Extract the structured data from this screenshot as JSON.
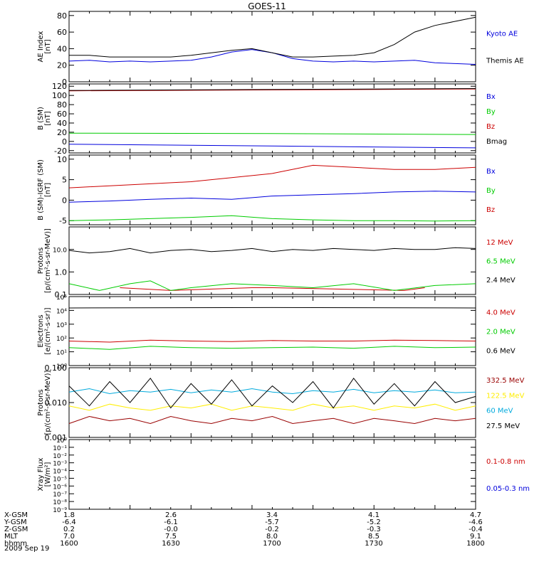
{
  "title": "GOES-11",
  "date_label": "2009 Sep 19",
  "ephemeris": {
    "rows": [
      {
        "label": "X-GSM",
        "values": [
          "1.8",
          "2.6",
          "3.4",
          "4.1",
          "4.7"
        ]
      },
      {
        "label": "Y-GSM",
        "values": [
          "-6.4",
          "-6.1",
          "-5.7",
          "-5.2",
          "-4.6"
        ]
      },
      {
        "label": "Z-GSM",
        "values": [
          "0.2",
          "-0.0",
          "-0.2",
          "-0.3",
          "-0.4"
        ]
      },
      {
        "label": "MLT",
        "values": [
          "7.0",
          "7.5",
          "8.0",
          "8.5",
          "9.1"
        ]
      },
      {
        "label": "hhmm",
        "values": [
          "1600",
          "1630",
          "1700",
          "1730",
          "1800"
        ]
      }
    ]
  },
  "colors": {
    "black": "#000000",
    "blue": "#0000dd",
    "red": "#cc0000",
    "green": "#00cc00",
    "yellow": "#ffee00",
    "cyan": "#00aadd",
    "darkred": "#990000"
  },
  "chart_data": [
    {
      "type": "line",
      "ylabel": "AE Index\n[nT]",
      "ylim": [
        0,
        85
      ],
      "yticks": [
        0,
        20,
        40,
        60,
        80
      ],
      "log": false,
      "xlim": [
        1600,
        1800
      ],
      "series": [
        {
          "name": "Kyoto AE",
          "color": "#0000dd",
          "x": [
            1600,
            1610,
            1620,
            1630,
            1640,
            1650,
            1660,
            1670,
            1680,
            1690,
            1700,
            1710,
            1720,
            1730,
            1740,
            1750,
            1760,
            1770,
            1780,
            1790,
            1800
          ],
          "y": [
            25,
            26,
            24,
            25,
            24,
            25,
            26,
            30,
            36,
            39,
            35,
            28,
            25,
            24,
            25,
            24,
            25,
            26,
            23,
            22,
            21
          ]
        },
        {
          "name": "Themis AE",
          "color": "#000000",
          "x": [
            1600,
            1610,
            1620,
            1630,
            1640,
            1650,
            1660,
            1670,
            1680,
            1690,
            1700,
            1710,
            1720,
            1730,
            1740,
            1750,
            1760,
            1770,
            1780,
            1790,
            1800
          ],
          "y": [
            32,
            32,
            30,
            30,
            30,
            30,
            32,
            35,
            38,
            40,
            35,
            30,
            30,
            31,
            32,
            35,
            45,
            60,
            68,
            73,
            78
          ]
        }
      ]
    },
    {
      "type": "line",
      "ylabel": "B (SM)\n[nT]",
      "ylim": [
        -25,
        125
      ],
      "yticks": [
        -20,
        0,
        20,
        40,
        60,
        80,
        100,
        120
      ],
      "log": false,
      "xlim": [
        1600,
        1800
      ],
      "series": [
        {
          "name": "Bx",
          "color": "#0000dd",
          "x": [
            1600,
            1700,
            1800
          ],
          "y": [
            -6,
            -10,
            -14
          ]
        },
        {
          "name": "By",
          "color": "#00cc00",
          "x": [
            1600,
            1700,
            1800
          ],
          "y": [
            18,
            17,
            15
          ]
        },
        {
          "name": "Bz",
          "color": "#cc0000",
          "x": [
            1600,
            1700,
            1800
          ],
          "y": [
            110,
            112,
            114
          ]
        },
        {
          "name": "Bmag",
          "color": "#000000",
          "x": [
            1600,
            1700,
            1800
          ],
          "y": [
            111,
            113,
            115
          ]
        }
      ]
    },
    {
      "type": "line",
      "ylabel": "B (SM)-IGRF (SM)\n[nT]",
      "ylim": [
        -6,
        11
      ],
      "yticks": [
        -5,
        0,
        5,
        10
      ],
      "log": false,
      "xlim": [
        1600,
        1800
      ],
      "series": [
        {
          "name": "Bx",
          "color": "#0000dd",
          "x": [
            1600,
            1620,
            1640,
            1660,
            1680,
            1700,
            1720,
            1740,
            1760,
            1780,
            1800
          ],
          "y": [
            -0.5,
            -0.2,
            0.2,
            0.5,
            0.2,
            1,
            1.3,
            1.6,
            2,
            2.2,
            2
          ]
        },
        {
          "name": "By",
          "color": "#00cc00",
          "x": [
            1600,
            1620,
            1640,
            1660,
            1680,
            1700,
            1720,
            1740,
            1760,
            1780,
            1800
          ],
          "y": [
            -5,
            -4.8,
            -4.5,
            -4.2,
            -3.8,
            -4.5,
            -4.8,
            -5,
            -5,
            -5.1,
            -5
          ]
        },
        {
          "name": "Bz",
          "color": "#cc0000",
          "x": [
            1600,
            1620,
            1640,
            1660,
            1680,
            1700,
            1720,
            1740,
            1760,
            1780,
            1800
          ],
          "y": [
            3,
            3.5,
            4,
            4.5,
            5.5,
            6.5,
            8.5,
            8,
            7.5,
            7.5,
            8
          ]
        }
      ]
    },
    {
      "type": "line",
      "ylabel": "Protons\n[p/(cm²-s-sr-MeV)]",
      "ylim": [
        0.1,
        100
      ],
      "yticks": [
        0.1,
        1,
        10
      ],
      "ytick_labels": [
        "0.1",
        "1.0",
        "10.0"
      ],
      "log": true,
      "xlim": [
        1600,
        1800
      ],
      "series": [
        {
          "name": "12 MeV",
          "color": "#cc0000",
          "x": [
            1625,
            1650,
            1690,
            1700,
            1765,
            1775
          ],
          "y": [
            0.2,
            0.15,
            0.2,
            0.2,
            0.15,
            0.2
          ]
        },
        {
          "name": "6.5 MeV",
          "color": "#00cc00",
          "x": [
            1600,
            1615,
            1630,
            1640,
            1650,
            1660,
            1680,
            1700,
            1720,
            1740,
            1760,
            1780,
            1800
          ],
          "y": [
            0.3,
            0.15,
            0.3,
            0.4,
            0.15,
            0.2,
            0.3,
            0.25,
            0.2,
            0.3,
            0.15,
            0.25,
            0.3
          ]
        },
        {
          "name": "2.4 MeV",
          "color": "#000000",
          "x": [
            1600,
            1610,
            1620,
            1630,
            1640,
            1650,
            1660,
            1670,
            1680,
            1690,
            1700,
            1710,
            1720,
            1730,
            1740,
            1750,
            1760,
            1770,
            1780,
            1790,
            1800
          ],
          "y": [
            9,
            7,
            8,
            11,
            7,
            9,
            10,
            8,
            9,
            11,
            8,
            10,
            9,
            11,
            10,
            9,
            11,
            10,
            10,
            12,
            11
          ]
        }
      ]
    },
    {
      "type": "line",
      "ylabel": "Electrons\n[e/(cm²-s-sr)]",
      "ylim": [
        1,
        100000
      ],
      "yticks": [
        1,
        10,
        100,
        1000,
        10000,
        100000
      ],
      "ytick_labels": [
        "10⁰",
        "10¹",
        "10²",
        "10³",
        "10⁴",
        "10⁵"
      ],
      "log": true,
      "xlim": [
        1600,
        1800
      ],
      "series": [
        {
          "name": "4.0 MeV",
          "color": "#cc0000",
          "x": [
            1600,
            1620,
            1640,
            1660,
            1680,
            1700,
            1720,
            1740,
            1760,
            1780,
            1800
          ],
          "y": [
            60,
            50,
            70,
            60,
            55,
            65,
            60,
            60,
            70,
            65,
            60
          ]
        },
        {
          "name": "2.0 MeV",
          "color": "#00cc00",
          "x": [
            1600,
            1620,
            1640,
            1660,
            1680,
            1700,
            1720,
            1740,
            1760,
            1780,
            1800
          ],
          "y": [
            20,
            15,
            25,
            20,
            18,
            20,
            22,
            18,
            25,
            20,
            22
          ]
        },
        {
          "name": "0.6 MeV",
          "color": "#000000",
          "x": [
            1600,
            1700,
            1800
          ],
          "y": [
            15000,
            16000,
            15000
          ]
        }
      ]
    },
    {
      "type": "line",
      "ylabel": "Protons\n[p/(cm²-s-sr-MeV)]",
      "ylim": [
        0.001,
        0.1
      ],
      "yticks": [
        0.001,
        0.01,
        0.1
      ],
      "ytick_labels": [
        "0.001",
        "0.010",
        "0.100"
      ],
      "log": true,
      "xlim": [
        1600,
        1800
      ],
      "series": [
        {
          "name": "332.5 MeV",
          "color": "#990000",
          "x": [
            1600,
            1610,
            1620,
            1630,
            1640,
            1650,
            1660,
            1670,
            1680,
            1690,
            1700,
            1710,
            1720,
            1730,
            1740,
            1750,
            1760,
            1770,
            1780,
            1790,
            1800
          ],
          "y": [
            0.0025,
            0.004,
            0.003,
            0.0035,
            0.0025,
            0.004,
            0.003,
            0.0025,
            0.0035,
            0.003,
            0.004,
            0.0025,
            0.003,
            0.0035,
            0.0025,
            0.0035,
            0.003,
            0.0025,
            0.0035,
            0.003,
            0.0035
          ]
        },
        {
          "name": "122.5 MeV",
          "color": "#ffee00",
          "x": [
            1600,
            1610,
            1620,
            1630,
            1640,
            1650,
            1660,
            1670,
            1680,
            1690,
            1700,
            1710,
            1720,
            1730,
            1740,
            1750,
            1760,
            1770,
            1780,
            1790,
            1800
          ],
          "y": [
            0.008,
            0.006,
            0.009,
            0.007,
            0.006,
            0.008,
            0.007,
            0.009,
            0.006,
            0.008,
            0.007,
            0.006,
            0.009,
            0.007,
            0.008,
            0.006,
            0.008,
            0.007,
            0.009,
            0.006,
            0.008
          ]
        },
        {
          "name": "60 MeV",
          "color": "#00aadd",
          "x": [
            1600,
            1610,
            1620,
            1630,
            1640,
            1650,
            1660,
            1670,
            1680,
            1690,
            1700,
            1710,
            1720,
            1730,
            1740,
            1750,
            1760,
            1770,
            1780,
            1790,
            1800
          ],
          "y": [
            0.02,
            0.025,
            0.018,
            0.022,
            0.02,
            0.024,
            0.019,
            0.023,
            0.02,
            0.025,
            0.02,
            0.018,
            0.022,
            0.02,
            0.024,
            0.019,
            0.022,
            0.02,
            0.023,
            0.019,
            0.02
          ]
        },
        {
          "name": "27.5 MeV",
          "color": "#000000",
          "x": [
            1600,
            1610,
            1620,
            1630,
            1640,
            1650,
            1660,
            1670,
            1680,
            1690,
            1700,
            1710,
            1720,
            1730,
            1740,
            1750,
            1760,
            1770,
            1780,
            1790,
            1800
          ],
          "y": [
            0.03,
            0.008,
            0.04,
            0.01,
            0.05,
            0.007,
            0.035,
            0.009,
            0.045,
            0.008,
            0.03,
            0.01,
            0.04,
            0.007,
            0.05,
            0.009,
            0.035,
            0.008,
            0.04,
            0.01,
            0.015
          ]
        }
      ]
    },
    {
      "type": "line",
      "ylabel": "Xray Flux\n[W/m²]",
      "ylim": [
        1e-09,
        1
      ],
      "yticks": [
        1e-09,
        1e-08,
        1e-07,
        1e-06,
        1e-05,
        0.0001,
        0.001,
        0.01,
        0.1,
        1
      ],
      "ytick_labels": [
        "10⁻⁹",
        "10⁻⁸",
        "10⁻⁷",
        "10⁻⁶",
        "10⁻⁵",
        "10⁻⁴",
        "10⁻³",
        "10⁻²",
        "10⁻¹",
        "10⁰"
      ],
      "log": true,
      "xlim": [
        1600,
        1800
      ],
      "series": [
        {
          "name": "0.1-0.8 nm",
          "color": "#cc0000",
          "x": [],
          "y": []
        },
        {
          "name": "0.05-0.3 nm",
          "color": "#0000dd",
          "x": [],
          "y": []
        }
      ]
    }
  ]
}
